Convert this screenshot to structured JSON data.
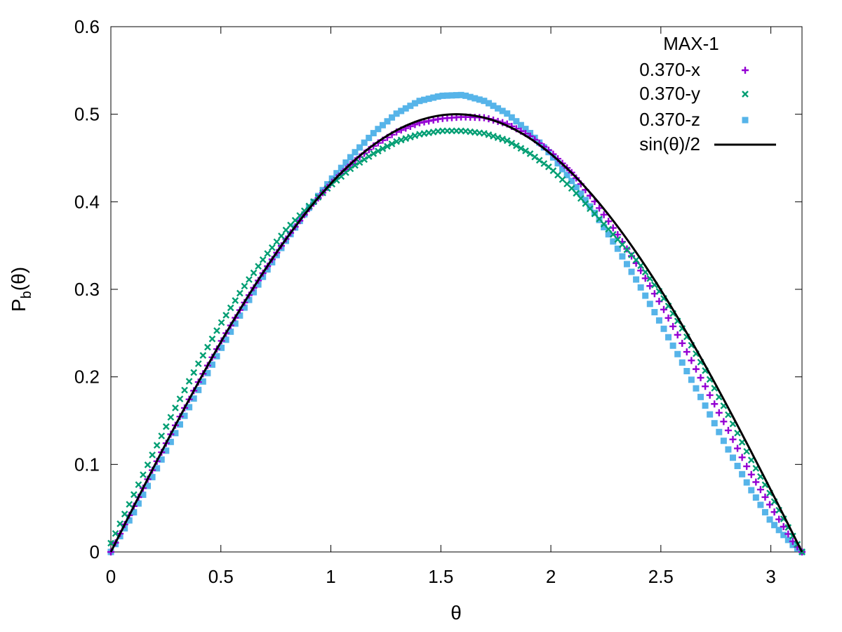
{
  "chart_data": {
    "type": "scatter",
    "title": "",
    "xlabel": "θ",
    "ylabel": {
      "base": "P",
      "sub": "b",
      "rest": "(θ)"
    },
    "xlim": [
      0,
      3.14159
    ],
    "ylim": [
      0,
      0.6
    ],
    "xticks": [
      "0",
      "0.5",
      "1",
      "1.5",
      "2",
      "2.5",
      "3"
    ],
    "yticks": [
      "0",
      "0.1",
      "0.2",
      "0.3",
      "0.4",
      "0.5",
      "0.6"
    ],
    "grid": false,
    "legend": {
      "title": "MAX-1",
      "placement": "top-right",
      "entries": [
        "0.370-x",
        "0.370-y",
        "0.370-z",
        "sin(θ)/2"
      ]
    },
    "series": [
      {
        "name": "0.370-x",
        "marker": "plus",
        "color": "#9400D3",
        "x": [
          0,
          0.1,
          0.2,
          0.3,
          0.4,
          0.5,
          0.6,
          0.7,
          0.8,
          0.9,
          1.0,
          1.1,
          1.2,
          1.3,
          1.4,
          1.5,
          1.6,
          1.7,
          1.8,
          1.9,
          2.0,
          2.1,
          2.2,
          2.3,
          2.4,
          2.5,
          2.6,
          2.7,
          2.8,
          2.9,
          3.0,
          3.1,
          3.14
        ],
        "y": [
          0,
          0.05,
          0.099,
          0.148,
          0.195,
          0.24,
          0.282,
          0.322,
          0.359,
          0.392,
          0.421,
          0.445,
          0.465,
          0.48,
          0.49,
          0.495,
          0.497,
          0.496,
          0.489,
          0.476,
          0.457,
          0.432,
          0.4,
          0.364,
          0.325,
          0.283,
          0.237,
          0.19,
          0.142,
          0.093,
          0.052,
          0.012,
          0
        ]
      },
      {
        "name": "0.370-y",
        "marker": "cross",
        "color": "#009E73",
        "x": [
          0,
          0.1,
          0.2,
          0.3,
          0.4,
          0.5,
          0.6,
          0.7,
          0.8,
          0.9,
          1.0,
          1.1,
          1.2,
          1.3,
          1.4,
          1.5,
          1.6,
          1.7,
          1.8,
          1.9,
          2.0,
          2.1,
          2.2,
          2.3,
          2.4,
          2.5,
          2.6,
          2.7,
          2.8,
          2.9,
          3.0,
          3.1,
          3.14
        ],
        "y": [
          0.01,
          0.063,
          0.117,
          0.168,
          0.216,
          0.261,
          0.301,
          0.337,
          0.369,
          0.395,
          0.419,
          0.44,
          0.456,
          0.469,
          0.477,
          0.481,
          0.481,
          0.478,
          0.47,
          0.456,
          0.438,
          0.414,
          0.386,
          0.358,
          0.33,
          0.295,
          0.254,
          0.208,
          0.16,
          0.11,
          0.065,
          0.018,
          0
        ]
      },
      {
        "name": "0.370-z",
        "marker": "square",
        "color": "#56B4E9",
        "x": [
          0,
          0.1,
          0.2,
          0.3,
          0.4,
          0.5,
          0.6,
          0.7,
          0.8,
          0.9,
          1.0,
          1.1,
          1.2,
          1.3,
          1.4,
          1.5,
          1.6,
          1.7,
          1.8,
          1.9,
          2.0,
          2.1,
          2.2,
          2.3,
          2.4,
          2.5,
          2.6,
          2.7,
          2.8,
          2.9,
          3.0,
          3.1,
          3.14
        ],
        "y": [
          0,
          0.043,
          0.091,
          0.139,
          0.186,
          0.232,
          0.276,
          0.318,
          0.357,
          0.393,
          0.425,
          0.454,
          0.48,
          0.501,
          0.515,
          0.521,
          0.522,
          0.515,
          0.501,
          0.48,
          0.454,
          0.422,
          0.387,
          0.348,
          0.306,
          0.261,
          0.215,
          0.168,
          0.12,
          0.075,
          0.035,
          0.008,
          0
        ]
      },
      {
        "name": "sin(θ)/2",
        "marker": "line",
        "color": "#000000",
        "function": "sin(x)/2"
      }
    ]
  }
}
